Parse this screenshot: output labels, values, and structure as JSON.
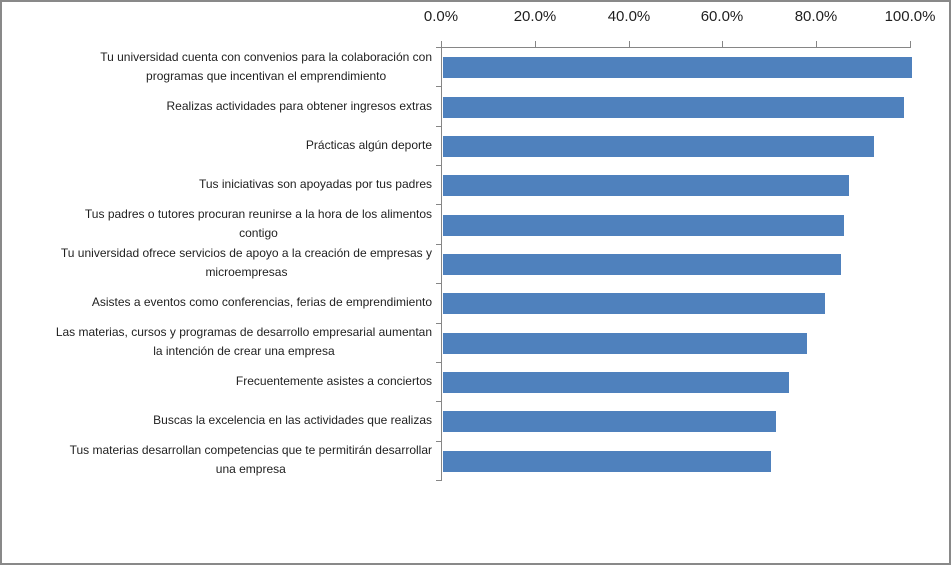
{
  "chart_data": {
    "type": "bar",
    "orientation": "horizontal",
    "title": "",
    "xlabel": "",
    "ylabel": "",
    "grid": false,
    "legend": false,
    "axis_position": "top",
    "xlim": [
      0,
      100
    ],
    "x_tick_labels": [
      "0.0%",
      "20.0%",
      "40.0%",
      "60.0%",
      "80.0%",
      "100.0%"
    ],
    "bar_color": "#4F81BD",
    "axis_color": "#868686",
    "categories": [
      "Tu universidad cuenta con convenios para la colaboración con\nprogramas que incentivan el emprendimiento",
      "Realizas actividades para obtener ingresos extras",
      "Prácticas algún deporte",
      "Tus iniciativas son apoyadas por tus padres",
      "Tus padres o tutores procuran reunirse a la hora de los alimentos\ncontigo",
      "Tu universidad ofrece servicios de apoyo a la creación de empresas y\nmicroempresas",
      "Asistes a eventos como conferencias, ferias de emprendimiento",
      "Las materias, cursos y programas de desarrollo empresarial aumentan\nla intención de crear una empresa",
      "Frecuentemente asistes a conciertos",
      "Buscas la excelencia en las actividades que realizas",
      "Tus materias desarrollan competencias que te permitirán desarrollar\nuna empresa"
    ],
    "values": [
      100.0,
      98.3,
      92.0,
      86.5,
      85.5,
      84.9,
      81.5,
      77.6,
      73.8,
      71.1,
      70.0
    ]
  }
}
